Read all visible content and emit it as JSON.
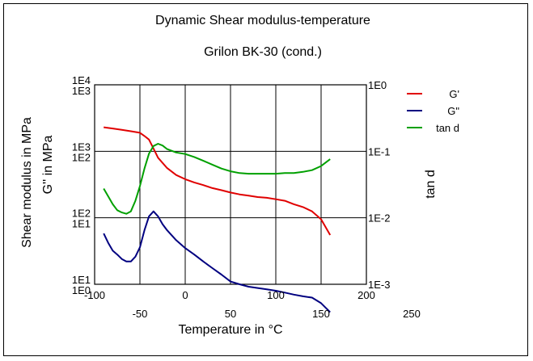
{
  "chart_data": {
    "type": "line",
    "title": "Dynamic Shear modulus-temperature",
    "subtitle": "Grilon BK-30 (cond.)",
    "xlabel": "Temperature in °C",
    "ylabel_left_1": "Shear modulus in MPa",
    "ylabel_left_2": "G'' in MPa",
    "ylabel_right": "tan d",
    "xlim": [
      -50,
      250
    ],
    "x_ticks_upper": [
      "-100",
      "0",
      "100",
      "200"
    ],
    "x_ticks_lower": [
      "-50",
      "50",
      "150",
      "250"
    ],
    "left_ticks_1": [
      "1E4",
      "1E3",
      "1E2",
      "1E1"
    ],
    "left_ticks_2": [
      "1E3",
      "1E2",
      "1E1",
      "1E0"
    ],
    "right_ticks": [
      "1E0",
      "1E-1",
      "1E-2",
      "1E-3"
    ],
    "grid": true,
    "legend_position": "right",
    "series": [
      {
        "name": "G'",
        "color": "#e00000",
        "axis": "left_1",
        "x": [
          -40,
          -30,
          -20,
          -10,
          0,
          5,
          10,
          15,
          20,
          30,
          40,
          50,
          60,
          70,
          80,
          90,
          100,
          110,
          120,
          130,
          140,
          150,
          160,
          170,
          180,
          190,
          200,
          210
        ],
        "y": [
          2300,
          2200,
          2100,
          2000,
          1900,
          1700,
          1500,
          1100,
          800,
          560,
          440,
          380,
          340,
          310,
          280,
          260,
          240,
          225,
          215,
          205,
          200,
          190,
          180,
          160,
          145,
          125,
          95,
          55
        ]
      },
      {
        "name": "G\"",
        "color": "#000080",
        "axis": "left_2",
        "x": [
          -40,
          -35,
          -30,
          -25,
          -20,
          -15,
          -10,
          -5,
          0,
          5,
          10,
          15,
          20,
          25,
          30,
          40,
          50,
          60,
          70,
          80,
          90,
          100,
          110,
          120,
          130,
          140,
          150,
          160,
          170,
          180,
          190,
          200,
          210
        ],
        "y": [
          5.8,
          4.2,
          3.2,
          2.8,
          2.4,
          2.2,
          2.2,
          2.6,
          3.6,
          6.5,
          10.5,
          12.5,
          10.5,
          8.0,
          6.5,
          4.6,
          3.5,
          2.8,
          2.2,
          1.75,
          1.4,
          1.1,
          1.0,
          0.92,
          0.88,
          0.84,
          0.8,
          0.75,
          0.7,
          0.66,
          0.63,
          0.52,
          0.38
        ]
      },
      {
        "name": "tan d",
        "color": "#00a000",
        "axis": "right",
        "x": [
          -40,
          -35,
          -30,
          -25,
          -20,
          -15,
          -10,
          -5,
          0,
          5,
          10,
          15,
          20,
          25,
          30,
          40,
          50,
          60,
          70,
          80,
          90,
          100,
          110,
          120,
          130,
          140,
          150,
          160,
          170,
          180,
          190,
          200,
          210
        ],
        "y": [
          0.0275,
          0.021,
          0.016,
          0.013,
          0.012,
          0.0115,
          0.0125,
          0.018,
          0.03,
          0.055,
          0.092,
          0.12,
          0.13,
          0.122,
          0.108,
          0.096,
          0.091,
          0.082,
          0.072,
          0.063,
          0.055,
          0.05,
          0.047,
          0.046,
          0.046,
          0.046,
          0.046,
          0.047,
          0.047,
          0.049,
          0.052,
          0.06,
          0.076
        ]
      }
    ]
  }
}
